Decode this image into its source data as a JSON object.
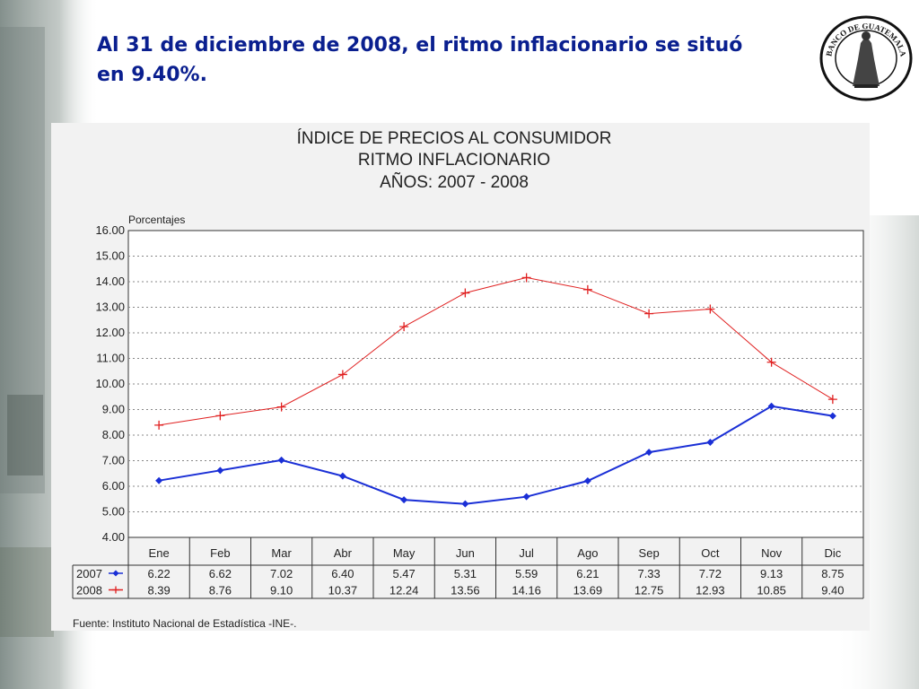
{
  "headline": {
    "line1": "Al 31 de diciembre de 2008, el ritmo inflacionario se situó",
    "line2": "en 9.40%."
  },
  "seal": {
    "text": "BANCO DE GUATEMALA"
  },
  "colors": {
    "headline": "#0a1f8f",
    "series_2007": "#1a2fd6",
    "series_2008": "#e02020",
    "panel": "#f2f2f2"
  },
  "chart_data": {
    "type": "line",
    "title": [
      "ÍNDICE DE PRECIOS AL CONSUMIDOR",
      "RITMO INFLACIONARIO",
      "AÑOS: 2007 - 2008"
    ],
    "ylabel": "Porcentajes",
    "ylim": [
      4.0,
      16.0
    ],
    "yticks": [
      "4.00",
      "5.00",
      "6.00",
      "7.00",
      "8.00",
      "9.00",
      "10.00",
      "11.00",
      "12.00",
      "13.00",
      "14.00",
      "15.00",
      "16.00"
    ],
    "categories": [
      "Ene",
      "Feb",
      "Mar",
      "Abr",
      "May",
      "Jun",
      "Jul",
      "Ago",
      "Sep",
      "Oct",
      "Nov",
      "Dic"
    ],
    "grid": true,
    "series": [
      {
        "name": "2007",
        "marker": "diamond",
        "color": "#1a2fd6",
        "values": [
          6.22,
          6.62,
          7.02,
          6.4,
          5.47,
          5.31,
          5.59,
          6.21,
          7.33,
          7.72,
          9.13,
          8.75
        ],
        "labels": [
          "6.22",
          "6.62",
          "7.02",
          "6.40",
          "5.47",
          "5.31",
          "5.59",
          "6.21",
          "7.33",
          "7.72",
          "9.13",
          "8.75"
        ]
      },
      {
        "name": "2008",
        "marker": "plus",
        "color": "#e02020",
        "values": [
          8.39,
          8.76,
          9.1,
          10.37,
          12.24,
          13.56,
          14.16,
          13.69,
          12.75,
          12.93,
          10.85,
          9.4
        ],
        "labels": [
          "8.39",
          "8.76",
          "9.10",
          "10.37",
          "12.24",
          "13.56",
          "14.16",
          "13.69",
          "12.75",
          "12.93",
          "10.85",
          "9.40"
        ]
      }
    ],
    "source": "Fuente:   Instituto Nacional de Estadística -INE-."
  }
}
